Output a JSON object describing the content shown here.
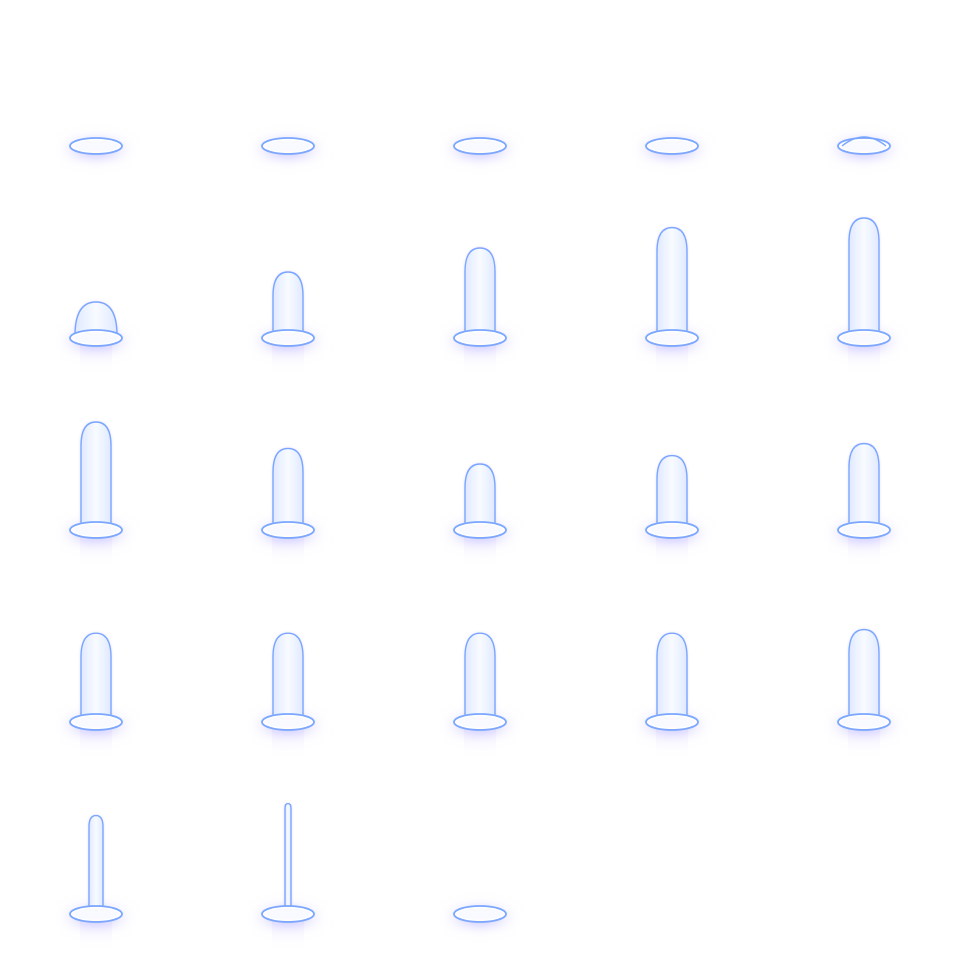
{
  "sheet": {
    "type": "sprite-sheet",
    "columns": 5,
    "frame_count": 23,
    "colors": {
      "background": "#ffffff",
      "outline": "#7aa6ff",
      "glow": "#6f5cff",
      "accent": "#9b6bff",
      "fill": "#f1f6ff"
    }
  },
  "frames": [
    {
      "index": 1,
      "beam": 0.0,
      "flat": 0.0
    },
    {
      "index": 2,
      "beam": 0.0,
      "flat": 0.0
    },
    {
      "index": 3,
      "beam": 0.0,
      "flat": 0.0
    },
    {
      "index": 4,
      "beam": 0.0,
      "flat": 0.0
    },
    {
      "index": 5,
      "beam": 0.0,
      "flat": 1.0
    },
    {
      "index": 6,
      "beam": 0.3,
      "flat": 0.0
    },
    {
      "index": 7,
      "beam": 0.55,
      "flat": 0.0
    },
    {
      "index": 8,
      "beam": 0.75,
      "flat": 0.0
    },
    {
      "index": 9,
      "beam": 0.92,
      "flat": 0.0
    },
    {
      "index": 10,
      "beam": 1.0,
      "flat": 0.0
    },
    {
      "index": 11,
      "beam": 0.9,
      "flat": 0.0
    },
    {
      "index": 12,
      "beam": 0.68,
      "flat": 0.0
    },
    {
      "index": 13,
      "beam": 0.55,
      "flat": 0.0
    },
    {
      "index": 14,
      "beam": 0.62,
      "flat": 0.0
    },
    {
      "index": 15,
      "beam": 0.72,
      "flat": 0.0
    },
    {
      "index": 16,
      "beam": 0.74,
      "flat": 0.0
    },
    {
      "index": 17,
      "beam": 0.74,
      "flat": 0.0
    },
    {
      "index": 18,
      "beam": 0.74,
      "flat": 0.0
    },
    {
      "index": 19,
      "beam": 0.74,
      "flat": 0.0
    },
    {
      "index": 20,
      "beam": 0.77,
      "flat": 0.0
    },
    {
      "index": 21,
      "beam": 0.82,
      "flat": 0.0
    },
    {
      "index": 22,
      "beam": 0.92,
      "flat": 0.0
    },
    {
      "index": 23,
      "beam": 0.0,
      "flat": 0.0
    }
  ]
}
